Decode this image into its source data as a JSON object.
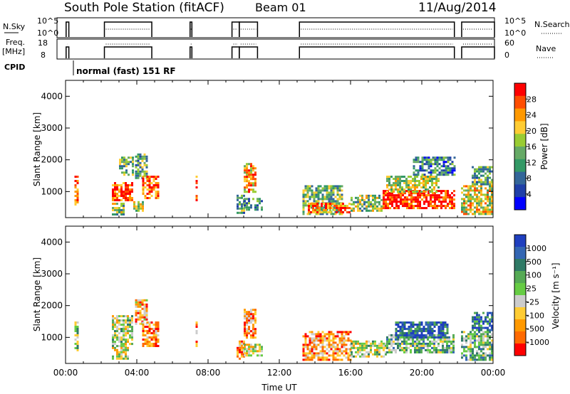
{
  "header": {
    "title": "South Pole Station (fitACF)",
    "beam": "Beam 01",
    "date": "11/Aug/2014"
  },
  "status": {
    "nsky_label": "N.Sky",
    "nsky_ticks": [
      "10^5",
      "10^0"
    ],
    "nsearch_label": "N.Search",
    "nsearch_ticks": [
      "10^5",
      "10^0"
    ],
    "freq_label_1": "Freq.",
    "freq_label_2": "[MHz]",
    "freq_ticks": [
      "18",
      "8"
    ],
    "nave_label": "Nave",
    "nave_ticks": [
      "60",
      "0"
    ],
    "cpid_label": "CPID",
    "cpid_value": "normal (fast) 151 RF"
  },
  "power_colorbar": {
    "label": "Power [dB]",
    "ticks": [
      "28",
      "24",
      "20",
      "16",
      "12",
      "8",
      "4"
    ],
    "colors": [
      "#ff0000",
      "#ff4d00",
      "#ff9900",
      "#ffcc33",
      "#99cc33",
      "#66aa66",
      "#339966",
      "#336699",
      "#1f3fa8",
      "#0000ff"
    ]
  },
  "velocity_colorbar": {
    "label": "Velocity [m s⁻¹]",
    "ticks": [
      "1000",
      "500",
      "100",
      "25",
      "-25",
      "-100",
      "-500",
      "-1000"
    ],
    "colors": [
      "#1f3fbf",
      "#3366b3",
      "#2f7a66",
      "#55aa55",
      "#66cc44",
      "#cccccc",
      "#ffcc33",
      "#ff9900",
      "#ff6a00",
      "#ff0000"
    ]
  },
  "chart_data": [
    {
      "type": "heatmap",
      "panel": "power",
      "xlabel": "",
      "ylabel": "Slant Range [km]",
      "xlim_hours": [
        0,
        24
      ],
      "ylim_km": [
        180,
        4500
      ],
      "yticks": [
        "1000",
        "2000",
        "3000",
        "4000"
      ],
      "echo_regions": [
        {
          "t0": 0.5,
          "t1": 0.65,
          "r0": 600,
          "r1": 1500,
          "level": 0.85
        },
        {
          "t0": 2.6,
          "t1": 3.7,
          "r0": 700,
          "r1": 1300,
          "level": 0.9
        },
        {
          "t0": 2.6,
          "t1": 3.3,
          "r0": 300,
          "r1": 650,
          "level": 0.5
        },
        {
          "t0": 3.0,
          "t1": 3.8,
          "r0": 1500,
          "r1": 2100,
          "level": 0.45
        },
        {
          "t0": 3.9,
          "t1": 4.6,
          "r0": 1400,
          "r1": 2200,
          "level": 0.4
        },
        {
          "t0": 4.3,
          "t1": 5.2,
          "r0": 800,
          "r1": 1500,
          "level": 0.85
        },
        {
          "t0": 3.8,
          "t1": 4.4,
          "r0": 400,
          "r1": 700,
          "level": 0.55
        },
        {
          "t0": 7.3,
          "t1": 7.4,
          "r0": 700,
          "r1": 1500,
          "level": 0.85
        },
        {
          "t0": 9.6,
          "t1": 10.0,
          "r0": 350,
          "r1": 900,
          "level": 0.4
        },
        {
          "t0": 10.0,
          "t1": 10.7,
          "r0": 1000,
          "r1": 1900,
          "level": 0.7
        },
        {
          "t0": 10.0,
          "t1": 11.0,
          "r0": 400,
          "r1": 800,
          "level": 0.35
        },
        {
          "t0": 13.3,
          "t1": 15.5,
          "r0": 300,
          "r1": 1200,
          "level": 0.45
        },
        {
          "t0": 13.6,
          "t1": 16.0,
          "r0": 350,
          "r1": 650,
          "level": 0.8
        },
        {
          "t0": 16.0,
          "t1": 17.8,
          "r0": 400,
          "r1": 900,
          "level": 0.5
        },
        {
          "t0": 17.8,
          "t1": 21.8,
          "r0": 450,
          "r1": 1050,
          "level": 0.95
        },
        {
          "t0": 18.0,
          "t1": 21.0,
          "r0": 1000,
          "r1": 1500,
          "level": 0.55
        },
        {
          "t0": 19.5,
          "t1": 21.8,
          "r0": 1500,
          "r1": 2100,
          "level": 0.3
        },
        {
          "t0": 22.2,
          "t1": 24.0,
          "r0": 300,
          "r1": 1200,
          "level": 0.6
        },
        {
          "t0": 22.8,
          "t1": 24.0,
          "r0": 1200,
          "r1": 1800,
          "level": 0.4
        }
      ]
    },
    {
      "type": "heatmap",
      "panel": "velocity",
      "xlabel": "Time UT",
      "ylabel": "Slant Range [km]",
      "xlim_hours": [
        0,
        24
      ],
      "ylim_km": [
        180,
        4500
      ],
      "xticks": [
        "00:00",
        "04:00",
        "08:00",
        "12:00",
        "16:00",
        "20:00",
        "00:00"
      ],
      "yticks": [
        "1000",
        "2000",
        "3000",
        "4000"
      ],
      "echo_regions": [
        {
          "t0": 0.5,
          "t1": 0.65,
          "r0": 600,
          "r1": 1500,
          "level": 0.55
        },
        {
          "t0": 2.6,
          "t1": 3.7,
          "r0": 700,
          "r1": 1700,
          "level": 0.5
        },
        {
          "t0": 2.6,
          "t1": 3.5,
          "r0": 300,
          "r1": 700,
          "level": 0.45
        },
        {
          "t0": 3.9,
          "t1": 4.6,
          "r0": 1400,
          "r1": 2200,
          "level": 0.3
        },
        {
          "t0": 4.3,
          "t1": 5.2,
          "r0": 700,
          "r1": 1500,
          "level": 0.2
        },
        {
          "t0": 7.3,
          "t1": 7.4,
          "r0": 700,
          "r1": 1500,
          "level": 0.2
        },
        {
          "t0": 9.6,
          "t1": 10.0,
          "r0": 350,
          "r1": 900,
          "level": 0.3
        },
        {
          "t0": 10.0,
          "t1": 10.7,
          "r0": 1000,
          "r1": 1900,
          "level": 0.25
        },
        {
          "t0": 10.0,
          "t1": 11.0,
          "r0": 400,
          "r1": 800,
          "level": 0.45
        },
        {
          "t0": 13.3,
          "t1": 16.0,
          "r0": 300,
          "r1": 1200,
          "level": 0.25
        },
        {
          "t0": 16.0,
          "t1": 18.0,
          "r0": 400,
          "r1": 900,
          "level": 0.5
        },
        {
          "t0": 18.0,
          "t1": 21.8,
          "r0": 500,
          "r1": 1100,
          "level": 0.6
        },
        {
          "t0": 18.5,
          "t1": 21.5,
          "r0": 1000,
          "r1": 1500,
          "level": 0.85
        },
        {
          "t0": 22.2,
          "t1": 24.0,
          "r0": 300,
          "r1": 1200,
          "level": 0.6
        },
        {
          "t0": 22.8,
          "t1": 24.0,
          "r0": 1200,
          "r1": 1800,
          "level": 0.8
        }
      ]
    }
  ]
}
